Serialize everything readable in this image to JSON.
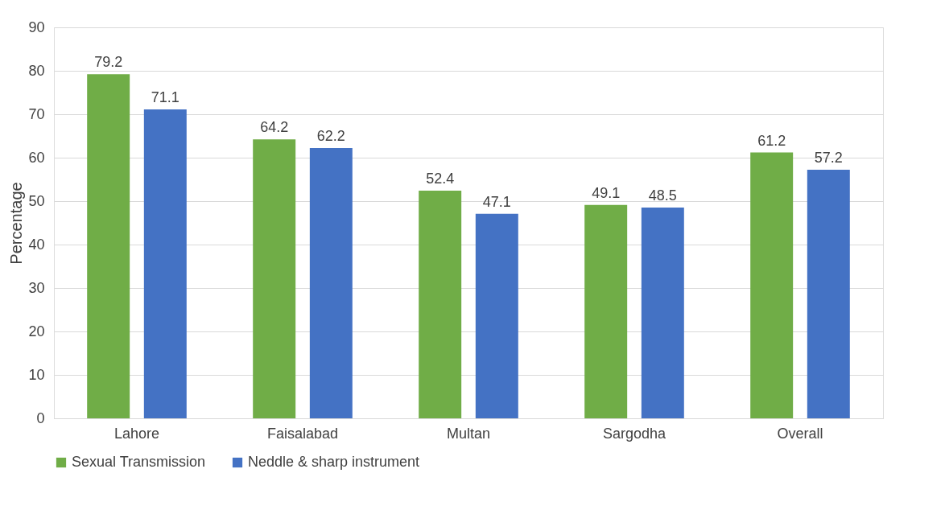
{
  "chart_data": {
    "type": "bar",
    "ylabel": "Percentage",
    "categories": [
      "Lahore",
      "Faisalabad",
      "Multan",
      "Sargodha",
      "Overall"
    ],
    "series": [
      {
        "name": "Sexual Transmission",
        "color": "#70ad47",
        "values": [
          79.2,
          64.2,
          52.4,
          49.1,
          61.2
        ]
      },
      {
        "name": "Neddle & sharp instrument",
        "color": "#4472c4",
        "values": [
          71.1,
          62.2,
          47.1,
          48.5,
          57.2
        ]
      }
    ],
    "ylim": [
      0,
      90
    ],
    "yticks": [
      0,
      10,
      20,
      30,
      40,
      50,
      60,
      70,
      80,
      90
    ],
    "grid": "y",
    "legend": "bottom",
    "data_labels": true
  }
}
